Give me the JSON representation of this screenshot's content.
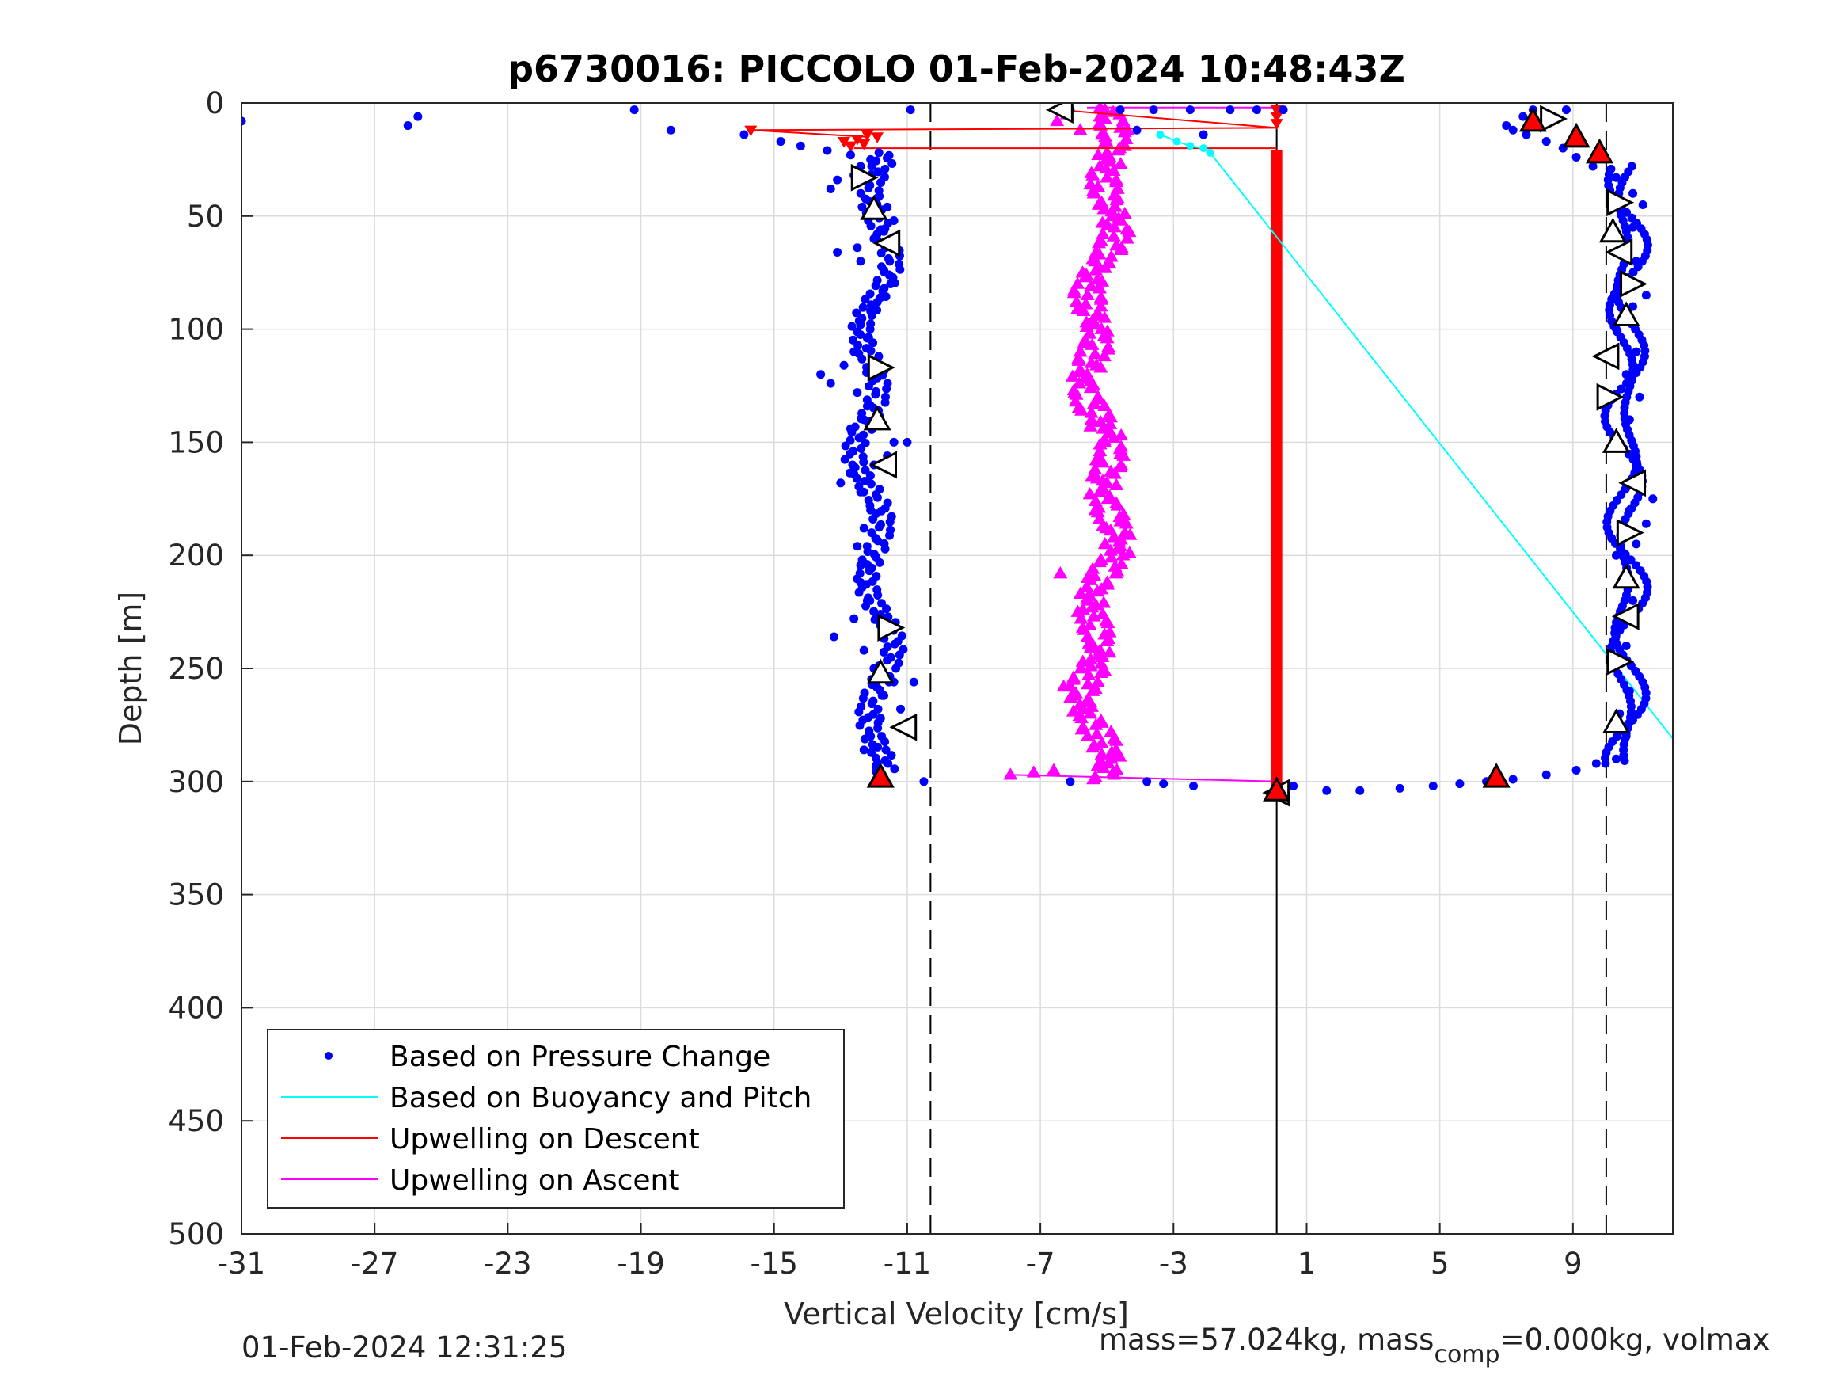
{
  "chart_data": {
    "type": "scatter",
    "title": "p6730016: PICCOLO 01-Feb-2024 10:48:43Z",
    "xlabel": "Vertical Velocity [cm/s]",
    "ylabel": "Depth [m]",
    "xlim": [
      -31,
      12
    ],
    "ylim": [
      0,
      500
    ],
    "y_reversed": true,
    "grid": true,
    "legend_position": "bottom-left",
    "xticks": [
      -31,
      -27,
      -23,
      -19,
      -15,
      -11,
      -7,
      -3,
      1,
      5,
      9
    ],
    "yticks": [
      0,
      50,
      100,
      150,
      200,
      250,
      300,
      350,
      400,
      450,
      500
    ],
    "reference_lines": [
      {
        "x": -10.3,
        "style": "dashed"
      },
      {
        "x": 0.1,
        "style": "solid"
      },
      {
        "x": 10.0,
        "style": "dashed"
      }
    ],
    "series": [
      {
        "name": "Based on Pressure Change",
        "color": "#0000ff",
        "marker": "dot",
        "points_descent": [
          [
            -10.9,
            3
          ],
          [
            -19.2,
            3
          ],
          [
            -25.7,
            6
          ],
          [
            -26,
            10
          ],
          [
            -31,
            8
          ],
          [
            -18.1,
            12
          ],
          [
            -15.9,
            14
          ],
          [
            -14.8,
            17
          ],
          [
            -14.2,
            19
          ],
          [
            -13.4,
            21
          ],
          [
            -12.7,
            23
          ],
          [
            -12.1,
            25
          ],
          [
            -12.4,
            28
          ],
          [
            -12.6,
            32
          ],
          [
            -13.1,
            34
          ],
          [
            -13.3,
            38
          ],
          [
            -11.9,
            42
          ],
          [
            -11.6,
            46
          ],
          [
            -11.4,
            52
          ],
          [
            -11.8,
            56
          ],
          [
            -12,
            60
          ],
          [
            -12.5,
            64
          ],
          [
            -13.1,
            66
          ],
          [
            -12.4,
            70
          ],
          [
            -11.7,
            74
          ],
          [
            -11.5,
            80
          ],
          [
            -11.8,
            86
          ],
          [
            -12.1,
            92
          ],
          [
            -12.4,
            98
          ],
          [
            -12.2,
            104
          ],
          [
            -12.6,
            110
          ],
          [
            -12.9,
            116
          ],
          [
            -13.6,
            120
          ],
          [
            -13.3,
            124
          ],
          [
            -12.5,
            128
          ],
          [
            -12.2,
            134
          ],
          [
            -12.3,
            140
          ],
          [
            -12.7,
            144
          ],
          [
            -11.4,
            150
          ],
          [
            -11,
            150
          ],
          [
            -11.6,
            156
          ],
          [
            -12,
            160
          ],
          [
            -12.6,
            164
          ],
          [
            -13,
            168
          ],
          [
            -12.4,
            172
          ],
          [
            -12.1,
            180
          ],
          [
            -12.3,
            188
          ],
          [
            -12.5,
            196
          ],
          [
            -12.2,
            204
          ],
          [
            -12.4,
            212
          ],
          [
            -12.2,
            220
          ],
          [
            -12.6,
            228
          ],
          [
            -13.2,
            236
          ],
          [
            -12.3,
            242
          ],
          [
            -12,
            250
          ],
          [
            -11.4,
            256
          ],
          [
            -10.8,
            256
          ],
          [
            -11.7,
            262
          ],
          [
            -11.2,
            268
          ],
          [
            -11.8,
            272
          ],
          [
            -12.1,
            280
          ],
          [
            -12.3,
            286
          ],
          [
            -11.9,
            292
          ],
          [
            -11.8,
            298
          ],
          [
            -10.5,
            300
          ]
        ],
        "points_ascent": [
          [
            -6.1,
            3
          ],
          [
            -4.6,
            3
          ],
          [
            -3.6,
            3
          ],
          [
            -2.5,
            3
          ],
          [
            -1.3,
            3
          ],
          [
            -0.5,
            3
          ],
          [
            0.3,
            3
          ],
          [
            -4.1,
            12
          ],
          [
            -2.1,
            14
          ],
          [
            -2.4,
            302
          ],
          [
            -3.3,
            301
          ],
          [
            -3.8,
            300
          ],
          [
            -6.1,
            300
          ],
          [
            0.6,
            302
          ],
          [
            1.6,
            304
          ],
          [
            2.6,
            304
          ],
          [
            3.8,
            303
          ],
          [
            4.8,
            302
          ],
          [
            5.6,
            301
          ],
          [
            6.4,
            300
          ],
          [
            7.2,
            299
          ],
          [
            8.2,
            297
          ],
          [
            9.1,
            295
          ],
          [
            9.7,
            292
          ],
          [
            10.3,
            290
          ],
          [
            10.6,
            280
          ],
          [
            10.4,
            270
          ],
          [
            10.7,
            260
          ],
          [
            10.2,
            250
          ],
          [
            10.6,
            240
          ],
          [
            10.4,
            230
          ],
          [
            10.8,
            220
          ],
          [
            10.5,
            210
          ],
          [
            10.3,
            200
          ],
          [
            10.9,
            195
          ],
          [
            11.2,
            186
          ],
          [
            10.7,
            180
          ],
          [
            11.4,
            175
          ],
          [
            10.6,
            170
          ],
          [
            10.9,
            160
          ],
          [
            10.4,
            150
          ],
          [
            10.7,
            140
          ],
          [
            11.0,
            130
          ],
          [
            10.6,
            120
          ],
          [
            10.9,
            110
          ],
          [
            10.3,
            100
          ],
          [
            10.8,
            90
          ],
          [
            11.2,
            85
          ],
          [
            10.6,
            80
          ],
          [
            10.9,
            70
          ],
          [
            10.4,
            65
          ],
          [
            10.8,
            55
          ],
          [
            11.1,
            45
          ],
          [
            10.8,
            40
          ],
          [
            10.3,
            33
          ],
          [
            9.6,
            28
          ],
          [
            9.1,
            24
          ],
          [
            8.7,
            20
          ],
          [
            8.2,
            17
          ],
          [
            7.6,
            14
          ],
          [
            7.2,
            12
          ],
          [
            7.0,
            10
          ],
          [
            7.5,
            6
          ],
          [
            7.8,
            3
          ],
          [
            8.8,
            3
          ]
        ]
      },
      {
        "name": "Based on Buoyancy and Pitch",
        "color": "#00ffff",
        "marker": "line",
        "points": [
          [
            -3.4,
            14
          ],
          [
            -2.9,
            17
          ],
          [
            -2.5,
            19
          ],
          [
            -2.1,
            20
          ],
          [
            -1.9,
            22
          ],
          [
            12,
            281
          ]
        ]
      },
      {
        "name": "Upwelling on Descent",
        "color": "#ff0000",
        "marker": "line",
        "points": [
          [
            -15.7,
            12
          ],
          [
            0.1,
            11
          ],
          [
            -12.2,
            14
          ],
          [
            -12.5,
            16
          ],
          [
            -12.3,
            18
          ],
          [
            -12.6,
            20
          ],
          [
            0.1,
            20
          ],
          [
            0.1,
            305
          ]
        ]
      },
      {
        "name": "Upwelling on Ascent",
        "color": "#ff00ff",
        "marker": "line",
        "points": [
          [
            -7.9,
            297
          ],
          [
            0.1,
            300
          ],
          [
            -5.2,
            250
          ],
          [
            -5.6,
            200
          ],
          [
            -5.0,
            150
          ],
          [
            -5.4,
            100
          ],
          [
            -5.2,
            50
          ],
          [
            -5.6,
            10
          ],
          [
            0.1,
            2
          ]
        ]
      }
    ],
    "markers": {
      "white_triangles": [
        [
          -6.4,
          3
        ],
        [
          -12.3,
          33
        ],
        [
          -12,
          47
        ],
        [
          -11.6,
          62
        ],
        [
          -11.8,
          117
        ],
        [
          -11.9,
          140
        ],
        [
          -11.7,
          160
        ],
        [
          -11.5,
          232
        ],
        [
          -11.8,
          252
        ],
        [
          -11.1,
          276
        ],
        [
          10.4,
          44
        ],
        [
          10.2,
          57
        ],
        [
          10.4,
          66
        ],
        [
          10.8,
          80
        ],
        [
          10.6,
          94
        ],
        [
          10.0,
          112
        ],
        [
          10.1,
          130
        ],
        [
          10.3,
          150
        ],
        [
          10.8,
          168
        ],
        [
          10.7,
          190
        ],
        [
          10.6,
          210
        ],
        [
          10.6,
          227
        ],
        [
          10.4,
          247
        ],
        [
          10.3,
          274
        ],
        [
          0.1,
          305
        ],
        [
          8.4,
          7
        ]
      ],
      "red_triangles": [
        [
          -11.8,
          298
        ],
        [
          6.7,
          298
        ],
        [
          7.8,
          8
        ],
        [
          9.1,
          15
        ],
        [
          9.8,
          22
        ],
        [
          0.1,
          304
        ]
      ]
    },
    "legend": [
      "Based on Pressure Change",
      "Based on Buoyancy and Pitch",
      "Upwelling on Descent",
      "Upwelling on Ascent"
    ]
  },
  "footer": {
    "timestamp": "01-Feb-2024 12:31:25",
    "mass_text_a": "mass=57.024kg, mass",
    "mass_sub": "comp",
    "mass_text_b": "=0.000kg, volmax"
  }
}
